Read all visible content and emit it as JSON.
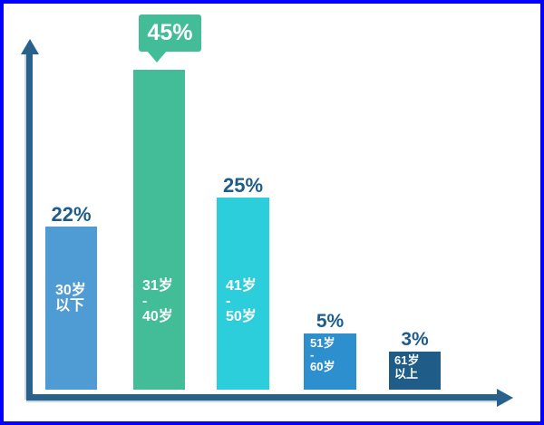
{
  "page": {
    "background_color": "#ffffff",
    "border_color": "#0202fe"
  },
  "colors": {
    "axis": "#27618c",
    "value_label_text": "#1e5c8b",
    "bar_label_text": "#ffffff",
    "callout_background": "#42bd98"
  },
  "chart_data": {
    "type": "bar",
    "title": "",
    "xlabel": "",
    "ylabel": "",
    "unit": "%",
    "categories": [
      "30岁以下",
      "31岁-40岁",
      "41岁-50岁",
      "51岁-60岁",
      "61岁以上"
    ],
    "values": [
      22,
      45,
      25,
      5,
      3
    ],
    "highlighted_index": 1,
    "legend": "none",
    "grid": "off",
    "axes": {
      "style": "arrow",
      "ticks": "none"
    },
    "bars": [
      {
        "category": "30岁以下",
        "value": 22,
        "value_label": "22%",
        "label_lines": [
          "30岁",
          "以下"
        ],
        "color": "#4e9cd3"
      },
      {
        "category": "31岁-40岁",
        "value": 45,
        "value_label": "45%",
        "label_lines": [
          "31岁",
          "-",
          "40岁"
        ],
        "color": "#42bd98"
      },
      {
        "category": "41岁-50岁",
        "value": 25,
        "value_label": "25%",
        "label_lines": [
          "41岁",
          "-",
          "50岁"
        ],
        "color": "#2dcedb"
      },
      {
        "category": "51岁-60岁",
        "value": 5,
        "value_label": "5%",
        "label_lines": [
          "51岁",
          "-",
          "60岁"
        ],
        "color": "#2e8fce"
      },
      {
        "category": "61岁以上",
        "value": 3,
        "value_label": "3%",
        "label_lines": [
          "61岁",
          "以上"
        ],
        "color": "#1f5c87"
      }
    ]
  }
}
